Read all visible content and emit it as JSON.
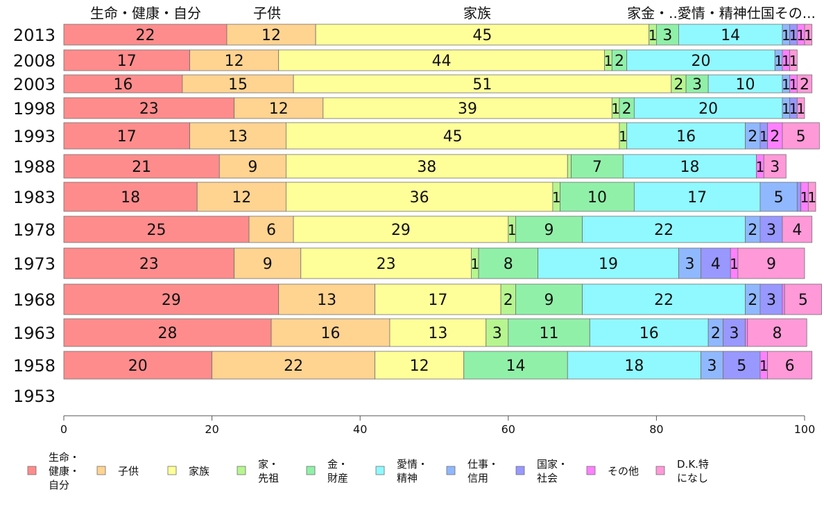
{
  "chart_data": {
    "type": "bar",
    "orientation": "horizontal",
    "stacked": true,
    "xlim": [
      0,
      100
    ],
    "x_ticks": [
      "0",
      "20",
      "40",
      "60",
      "80",
      "100"
    ],
    "categories": [
      "2013",
      "2008",
      "2003",
      "1998",
      "1993",
      "1988",
      "1983",
      "1978",
      "1973",
      "1968",
      "1963",
      "1958",
      "1953"
    ],
    "series": [
      {
        "name": "生命・健康・自分",
        "legend_lines": [
          "生命・",
          "健康・",
          "自分"
        ],
        "color": "#ff8c8c",
        "values": [
          22,
          17,
          16,
          23,
          17,
          21,
          18,
          25,
          23,
          29,
          28,
          20,
          null
        ]
      },
      {
        "name": "子供",
        "legend_lines": [
          "子供"
        ],
        "color": "#ffd390",
        "values": [
          12,
          12,
          15,
          12,
          13,
          9,
          12,
          6,
          9,
          13,
          16,
          22,
          null
        ]
      },
      {
        "name": "家族",
        "legend_lines": [
          "家族"
        ],
        "color": "#ffff99",
        "values": [
          45,
          44,
          51,
          39,
          45,
          38,
          36,
          29,
          23,
          17,
          13,
          12,
          null
        ]
      },
      {
        "name": "家・先祖",
        "legend_lines": [
          "家・",
          "先祖"
        ],
        "color": "#b7f590",
        "values": [
          1,
          1,
          2,
          1,
          1,
          0.5,
          1,
          1,
          1,
          2,
          3,
          0,
          null
        ]
      },
      {
        "name": "金・財産",
        "legend_lines": [
          "金・",
          "財産"
        ],
        "color": "#90f0a8",
        "values": [
          3,
          2,
          3,
          2,
          0,
          7,
          10,
          9,
          8,
          9,
          11,
          14,
          null
        ]
      },
      {
        "name": "愛情・精神",
        "legend_lines": [
          "愛情・",
          "精神"
        ],
        "color": "#90f8ff",
        "values": [
          14,
          20,
          10,
          20,
          16,
          18,
          17,
          22,
          19,
          22,
          16,
          18,
          null
        ]
      },
      {
        "name": "仕事・信用",
        "legend_lines": [
          "仕事・",
          "信用"
        ],
        "color": "#90b8ff",
        "values": [
          1,
          1,
          1,
          1,
          2,
          0,
          5,
          2,
          3,
          2,
          2,
          3,
          null
        ]
      },
      {
        "name": "国家・社会",
        "legend_lines": [
          "国家・",
          "社会"
        ],
        "color": "#9898ff",
        "values": [
          1,
          0,
          0,
          1,
          1,
          0,
          0.5,
          3,
          4,
          3,
          3,
          5,
          null
        ]
      },
      {
        "name": "その他",
        "legend_lines": [
          "その他"
        ],
        "color": "#ff80ff",
        "values": [
          1,
          1,
          1,
          0,
          2,
          1,
          1,
          0,
          1,
          0.3,
          0.3,
          1,
          null
        ]
      },
      {
        "name": "D.K.特になし",
        "legend_lines": [
          "D.K.特",
          "になし"
        ],
        "color": "#ff99d8",
        "values": [
          1,
          1,
          2,
          1,
          5,
          3,
          1,
          4,
          9,
          5,
          8,
          6,
          null
        ]
      }
    ],
    "top_labels": [
      "生命・健康・自分",
      "子供",
      "家族",
      "家金・..愛情・精神仕国その..."
    ],
    "grid": false,
    "legend_position": "bottom"
  }
}
